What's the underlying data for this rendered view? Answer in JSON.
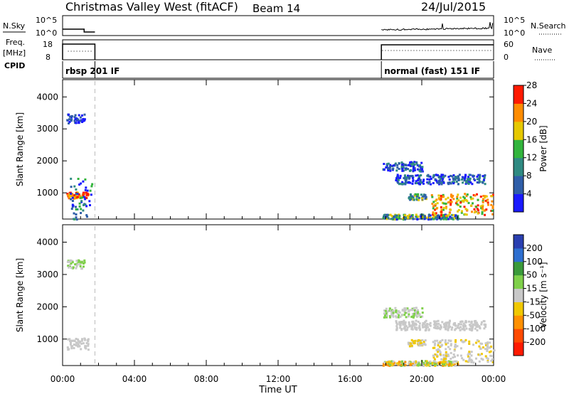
{
  "header": {
    "title": "Christmas Valley West (fitACF)",
    "beam": "Beam 14",
    "date": "24/Jul/2015"
  },
  "side_labels": {
    "nsky": "N.Sky",
    "freq": "Freq.",
    "freq_unit": "[MHz]",
    "cpid": "CPID",
    "nsearch": "N.Search",
    "nave": "Nave"
  },
  "axis_ticks": {
    "nsky_top": "10^5",
    "nsky_bottom": "10^0",
    "nsearch_top": "10^5",
    "nsearch_bottom": "10^0",
    "freq_top": "18",
    "freq_bottom": "8",
    "nave_top": "60",
    "nave_bottom": "0"
  },
  "cpid_modes": [
    {
      "label": "rbsp 201 IF",
      "start": 0.0,
      "end": 1.8
    },
    {
      "label": "normal (fast) 151 IF",
      "start": 17.75,
      "end": 24.0
    }
  ],
  "chart_data": [
    {
      "type": "heatmap",
      "name": "power-panel",
      "xlabel": "",
      "ylabel": "Slant Range [km]",
      "x_ticks": [
        "00:00",
        "04:00",
        "08:00",
        "12:00",
        "16:00",
        "20:00",
        "00:00"
      ],
      "x_tick_values": [
        0,
        4,
        8,
        12,
        16,
        20,
        24
      ],
      "xlim": [
        0,
        24
      ],
      "y_ticks": [
        "1000",
        "2000",
        "3000",
        "4000"
      ],
      "y_tick_values": [
        1000,
        2000,
        3000,
        4000
      ],
      "ylim": [
        180,
        4540
      ],
      "colorbar_label": "Power [dB]",
      "colorbar_ticks": [
        "4",
        "8",
        "12",
        "16",
        "20",
        "24",
        "28"
      ],
      "colorbar_colors": [
        "#1a1aff",
        "#2f5ea8",
        "#2f8a82",
        "#32b43c",
        "#e6c800",
        "#ff8c00",
        "#ff1a00"
      ],
      "data_gap": {
        "start": 1.8,
        "end": 17.75
      },
      "marker_line_time": 1.8
    },
    {
      "type": "heatmap",
      "name": "velocity-panel",
      "xlabel": "Time UT",
      "ylabel": "Slant Range [km]",
      "x_ticks": [
        "00:00",
        "04:00",
        "08:00",
        "12:00",
        "16:00",
        "20:00",
        "00:00"
      ],
      "x_tick_values": [
        0,
        4,
        8,
        12,
        16,
        20,
        24
      ],
      "xlim": [
        0,
        24
      ],
      "y_ticks": [
        "1000",
        "2000",
        "3000",
        "4000"
      ],
      "y_tick_values": [
        1000,
        2000,
        3000,
        4000
      ],
      "ylim": [
        180,
        4540
      ],
      "colorbar_label": "Velocity [m s⁻¹]",
      "colorbar_ticks": [
        "200",
        "100",
        "50",
        "15",
        "-15",
        "-50",
        "-100",
        "-200"
      ],
      "colorbar_colors": [
        "#2a3fb0",
        "#2e6fd0",
        "#3a9a3a",
        "#7fd04a",
        "#c8c8c8",
        "#f0c800",
        "#ff9000",
        "#ff4a00",
        "#ff1a00"
      ],
      "data_gap": {
        "start": 1.8,
        "end": 17.75
      },
      "marker_line_time": 1.8
    }
  ]
}
